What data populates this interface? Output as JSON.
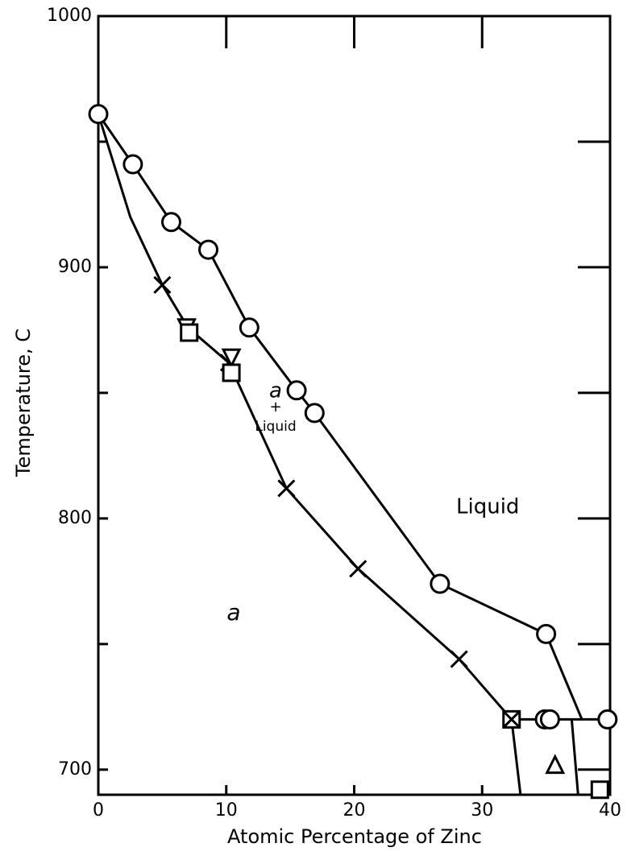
{
  "chart_data": {
    "type": "phase-diagram",
    "x_label": "Atomic Percentage of Zinc",
    "y_label": "Temperature, C",
    "xlim": [
      0,
      40
    ],
    "ylim": [
      690,
      1000
    ],
    "xticks": [
      0,
      10,
      20,
      30,
      40
    ],
    "yticks": [
      700,
      800,
      900,
      1000
    ],
    "yminor": [
      750,
      850,
      950
    ],
    "color": "#000000",
    "annotations": [
      "Liquid",
      "a",
      "a",
      "+",
      "Liquid"
    ],
    "series": [
      {
        "marker": "circle",
        "x": [
          0,
          2.7,
          5.7,
          8.6,
          11.8,
          15.5,
          16.9,
          26.7,
          35,
          34.9,
          35.3,
          39.8
        ],
        "y": [
          961,
          941,
          918,
          907,
          876,
          851,
          842,
          774,
          754,
          720,
          720,
          720
        ]
      },
      {
        "marker": "cross",
        "x": [
          5,
          10.2,
          14.7,
          20.3,
          28.2
        ],
        "y": [
          893,
          862,
          812,
          780,
          744
        ]
      },
      {
        "marker": "triangle-down",
        "x": [
          6.9,
          10.4
        ],
        "y": [
          876,
          864
        ]
      },
      {
        "marker": "triangle-up",
        "x": [
          35.7
        ],
        "y": [
          702
        ]
      },
      {
        "marker": "square",
        "x": [
          7.1,
          10.4,
          39.2
        ],
        "y": [
          874,
          858,
          692
        ]
      },
      {
        "marker": "boxed-cross",
        "x": [
          32.3
        ],
        "y": [
          720
        ]
      }
    ],
    "lines": [
      {
        "x": [
          0,
          2.7,
          5.7,
          8.6,
          11.8,
          15.5,
          16.9,
          26.7,
          35,
          37.8
        ],
        "y": [
          961,
          941,
          918,
          907,
          876,
          851,
          842,
          774,
          754,
          720
        ]
      },
      {
        "x": [
          0,
          2.5,
          5,
          7,
          10.2,
          14.7,
          20.3,
          28.2,
          32.3
        ],
        "y": [
          961,
          920,
          893,
          876,
          862,
          812,
          780,
          744,
          720
        ]
      },
      {
        "x": [
          32.3,
          40
        ],
        "y": [
          720,
          720
        ]
      },
      {
        "x": [
          32.3,
          33
        ],
        "y": [
          720,
          690
        ]
      },
      {
        "x": [
          37,
          37.5
        ],
        "y": [
          720,
          690
        ]
      }
    ]
  }
}
